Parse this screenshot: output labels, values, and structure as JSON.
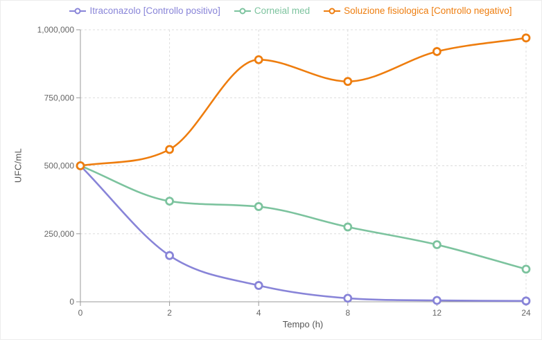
{
  "chart_data": {
    "type": "line",
    "title": "",
    "x": [
      "0",
      "2",
      "4",
      "8",
      "12",
      "24"
    ],
    "x_spacing": "categorical-even",
    "xlabel": "Tempo (h)",
    "ylabel": "UFC/mL",
    "ylim": [
      0,
      1000000
    ],
    "yticks": [
      0,
      250000,
      500000,
      750000,
      1000000
    ],
    "ytick_labels": [
      "0",
      "250,000",
      "500,000",
      "750,000",
      "1,000,000"
    ],
    "grid": true,
    "grid_style": "dashed",
    "legend_position": "top",
    "curve": "monotone",
    "marker": "hollow-circle",
    "series": [
      {
        "name": "Itraconazolo [Controllo positivo]",
        "color": "#8884d8",
        "values": [
          500000,
          170000,
          60000,
          13000,
          5000,
          3000
        ]
      },
      {
        "name": "Corneial med",
        "color": "#7cc39e",
        "values": [
          500000,
          370000,
          350000,
          275000,
          210000,
          120000
        ]
      },
      {
        "name": "Soluzione fisiologica [Controllo negativo]",
        "color": "#ee7d0e",
        "values": [
          500000,
          560000,
          890000,
          810000,
          920000,
          970000
        ]
      }
    ],
    "style_colors": {
      "axis": "#999999",
      "grid": "#dcdcdc",
      "tick_text": "#666666",
      "axis_title_text": "#555555",
      "background": "#ffffff"
    }
  }
}
